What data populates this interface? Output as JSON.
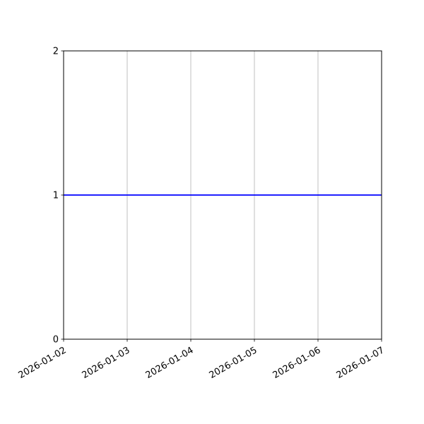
{
  "chart_data": {
    "type": "line",
    "title": "",
    "xlabel": "",
    "ylabel": "",
    "x": [
      "2026-01-02",
      "2026-01-03",
      "2026-01-04",
      "2026-01-05",
      "2026-01-06",
      "2026-01-07"
    ],
    "series": [
      {
        "values": [
          1,
          1,
          1,
          1,
          1,
          1
        ],
        "color": "#0000ff"
      }
    ],
    "xlim": [
      "2026-01-02",
      "2026-01-07"
    ],
    "ylim": [
      0,
      2
    ],
    "xticks": [
      "2026-01-02",
      "2026-01-03",
      "2026-01-04",
      "2026-01-05",
      "2026-01-06",
      "2026-01-07"
    ],
    "yticks": [
      "0",
      "1",
      "2"
    ],
    "grid": {
      "x": true,
      "y": false,
      "color": "#b0b0b0"
    },
    "legend": "none"
  }
}
